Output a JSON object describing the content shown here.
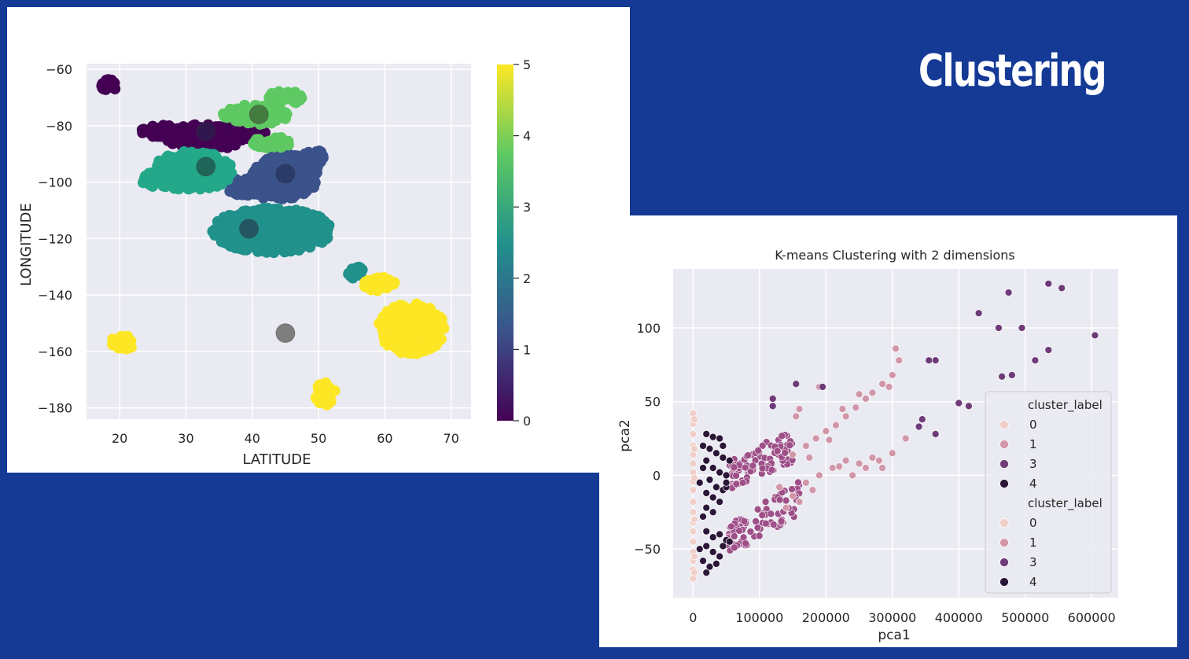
{
  "slide": {
    "title": "Clustering"
  },
  "chart_data": [
    {
      "type": "scatter",
      "title": "",
      "xlabel": "LATITUDE",
      "ylabel": "LONGITUDE",
      "xlim": [
        15,
        73
      ],
      "ylim": [
        -184,
        -58
      ],
      "xticks": [
        20,
        30,
        40,
        50,
        60,
        70
      ],
      "yticks": [
        -60,
        -80,
        -100,
        -120,
        -140,
        -160,
        -180
      ],
      "grid": true,
      "colormap": "viridis",
      "colorbar": {
        "min": 0,
        "max": 5,
        "ticks": [
          0,
          1,
          2,
          3,
          4,
          5
        ]
      },
      "clusters": [
        {
          "label": 0,
          "color": "#440154",
          "blobs": [
            [
              18.2,
              -66,
              1.2,
              2.5
            ],
            [
              27,
              -82,
              4,
              2.2
            ],
            [
              33,
              -84,
              6,
              4.5
            ],
            [
              38,
              -82,
              4,
              3
            ]
          ]
        },
        {
          "label": 1,
          "color": "#3b528b",
          "blobs": [
            [
              45,
              -98,
              5,
              8
            ],
            [
              40,
              -102,
              4,
              4
            ],
            [
              49,
              -92,
              2,
              4
            ]
          ]
        },
        {
          "label": 2,
          "color": "#21918c",
          "blobs": [
            [
              43,
              -117,
              9,
              8
            ],
            [
              55.6,
              -132,
              1.2,
              2.2
            ]
          ]
        },
        {
          "label": 3,
          "color": "#24a88a",
          "blobs": [
            [
              31,
              -96,
              6,
              7
            ],
            [
              26,
              -99,
              3,
              3
            ]
          ]
        },
        {
          "label": 4,
          "color": "#5ec962",
          "blobs": [
            [
              40.5,
              -76,
              5,
              3.5
            ],
            [
              45,
              -70,
              2.5,
              2.5
            ],
            [
              43,
              -86,
              3,
              2
            ]
          ]
        },
        {
          "label": 5,
          "color": "#fde725",
          "blobs": [
            [
              64,
              -152,
              5,
              9
            ],
            [
              59,
              -136,
              2.5,
              2.5
            ],
            [
              20.5,
              -157,
              2,
              2.5
            ],
            [
              51,
              -175,
              1.5,
              4
            ]
          ]
        }
      ],
      "centers": [
        {
          "x": 33,
          "y": -82,
          "color": "#2d1b4e"
        },
        {
          "x": 41,
          "y": -76,
          "color": "#3f6e3a"
        },
        {
          "x": 33,
          "y": -94.5,
          "color": "#1e5b4f"
        },
        {
          "x": 45,
          "y": -97,
          "color": "#283763"
        },
        {
          "x": 39.5,
          "y": -116.5,
          "color": "#244a5b"
        },
        {
          "x": 45,
          "y": -153.5,
          "color": "#6b6b6b"
        }
      ]
    },
    {
      "type": "scatter",
      "title": "K-means Clustering with 2 dimensions",
      "xlabel": "pca1",
      "ylabel": "pca2",
      "xlim": [
        -30000,
        640000
      ],
      "ylim": [
        -83,
        140
      ],
      "xticks": [
        0,
        100000,
        200000,
        300000,
        400000,
        500000,
        600000
      ],
      "yticks": [
        -50,
        0,
        50,
        100
      ],
      "grid": true,
      "series": [
        {
          "name": "0",
          "color": "#f0cfc8",
          "points": [
            [
              0,
              42
            ],
            [
              0,
              35
            ],
            [
              0,
              28
            ],
            [
              0,
              20
            ],
            [
              0,
              14
            ],
            [
              0,
              8
            ],
            [
              0,
              2
            ],
            [
              0,
              -4
            ],
            [
              0,
              -10
            ],
            [
              0,
              -18
            ],
            [
              0,
              -25
            ],
            [
              0,
              -32
            ],
            [
              0,
              -38
            ],
            [
              0,
              -45
            ],
            [
              0,
              -52
            ],
            [
              0,
              -58
            ],
            [
              0,
              -64
            ],
            [
              0,
              -70
            ],
            [
              2000,
              38
            ],
            [
              2000,
              18
            ],
            [
              2000,
              -2
            ],
            [
              2000,
              -30
            ],
            [
              2000,
              -55
            ],
            [
              2000,
              -66
            ]
          ]
        },
        {
          "name": "1",
          "color": "#d197a9",
          "points": [
            [
              150000,
              14
            ],
            [
              170000,
              20
            ],
            [
              185000,
              25
            ],
            [
              200000,
              30
            ],
            [
              215000,
              34
            ],
            [
              230000,
              40
            ],
            [
              245000,
              46
            ],
            [
              260000,
              52
            ],
            [
              270000,
              56
            ],
            [
              285000,
              62
            ],
            [
              300000,
              68
            ],
            [
              305000,
              86
            ],
            [
              310000,
              78
            ],
            [
              295000,
              60
            ],
            [
              155000,
              40
            ],
            [
              160000,
              45
            ],
            [
              190000,
              60
            ],
            [
              225000,
              45
            ],
            [
              250000,
              55
            ],
            [
              130000,
              -8
            ],
            [
              150000,
              -14
            ],
            [
              170000,
              -5
            ],
            [
              190000,
              0
            ],
            [
              210000,
              5
            ],
            [
              230000,
              10
            ],
            [
              250000,
              8
            ],
            [
              270000,
              12
            ],
            [
              285000,
              5
            ],
            [
              300000,
              15
            ],
            [
              320000,
              25
            ],
            [
              260000,
              5
            ],
            [
              240000,
              0
            ],
            [
              280000,
              10
            ],
            [
              220000,
              6
            ],
            [
              180000,
              -10
            ],
            [
              160000,
              -18
            ],
            [
              140000,
              -22
            ],
            [
              175000,
              12
            ],
            [
              205000,
              24
            ]
          ]
        },
        {
          "name": "3",
          "color": "#6e3a78",
          "points": [
            [
              430000,
              110
            ],
            [
              475000,
              124
            ],
            [
              535000,
              130
            ],
            [
              555000,
              127
            ],
            [
              460000,
              100
            ],
            [
              495000,
              100
            ],
            [
              535000,
              85
            ],
            [
              515000,
              78
            ],
            [
              605000,
              95
            ],
            [
              355000,
              78
            ],
            [
              365000,
              78
            ],
            [
              400000,
              49
            ],
            [
              415000,
              47
            ],
            [
              465000,
              67
            ],
            [
              480000,
              68
            ],
            [
              345000,
              38
            ],
            [
              340000,
              33
            ],
            [
              365000,
              28
            ],
            [
              120000,
              52
            ],
            [
              120000,
              47
            ],
            [
              155000,
              62
            ],
            [
              195000,
              60
            ]
          ]
        },
        {
          "name": "4",
          "color": "#2a1636",
          "points": [
            [
              20000,
              28
            ],
            [
              30000,
              26
            ],
            [
              40000,
              25
            ],
            [
              15000,
              20
            ],
            [
              25000,
              18
            ],
            [
              35000,
              15
            ],
            [
              45000,
              12
            ],
            [
              20000,
              10
            ],
            [
              30000,
              5
            ],
            [
              40000,
              2
            ],
            [
              50000,
              0
            ],
            [
              25000,
              -3
            ],
            [
              35000,
              -8
            ],
            [
              45000,
              -10
            ],
            [
              20000,
              -12
            ],
            [
              30000,
              -15
            ],
            [
              40000,
              -18
            ],
            [
              50000,
              -8
            ],
            [
              15000,
              5
            ],
            [
              10000,
              -5
            ],
            [
              20000,
              -22
            ],
            [
              30000,
              -25
            ],
            [
              15000,
              -28
            ],
            [
              20000,
              -38
            ],
            [
              30000,
              -42
            ],
            [
              40000,
              -40
            ],
            [
              50000,
              -44
            ],
            [
              20000,
              -48
            ],
            [
              30000,
              -52
            ],
            [
              40000,
              -55
            ],
            [
              15000,
              -58
            ],
            [
              25000,
              -62
            ],
            [
              35000,
              -60
            ],
            [
              20000,
              -66
            ],
            [
              45000,
              -48
            ],
            [
              55000,
              -45
            ],
            [
              10000,
              -50
            ],
            [
              50000,
              -5
            ],
            [
              55000,
              10
            ],
            [
              45000,
              20
            ]
          ]
        }
      ],
      "magenta_band_upper": {
        "color": "#9e4f88",
        "from": [
          50000,
          0
        ],
        "to": [
          150000,
          20
        ]
      },
      "magenta_band_lower": {
        "color": "#9e4f88",
        "from": [
          50000,
          -45
        ],
        "to": [
          160000,
          -15
        ]
      },
      "legend": {
        "placement": "lower-right",
        "groups": [
          {
            "title": "cluster_label",
            "entries": [
              {
                "label": "0",
                "color": "#f0cfc8"
              },
              {
                "label": "1",
                "color": "#d197a9"
              },
              {
                "label": "3",
                "color": "#6e3a78"
              },
              {
                "label": "4",
                "color": "#2a1636"
              }
            ]
          },
          {
            "title": "cluster_label",
            "entries": [
              {
                "label": "0",
                "color": "#f0cfc8"
              },
              {
                "label": "1",
                "color": "#d197a9"
              },
              {
                "label": "3",
                "color": "#6e3a78"
              },
              {
                "label": "4",
                "color": "#2a1636"
              }
            ]
          }
        ]
      }
    }
  ]
}
